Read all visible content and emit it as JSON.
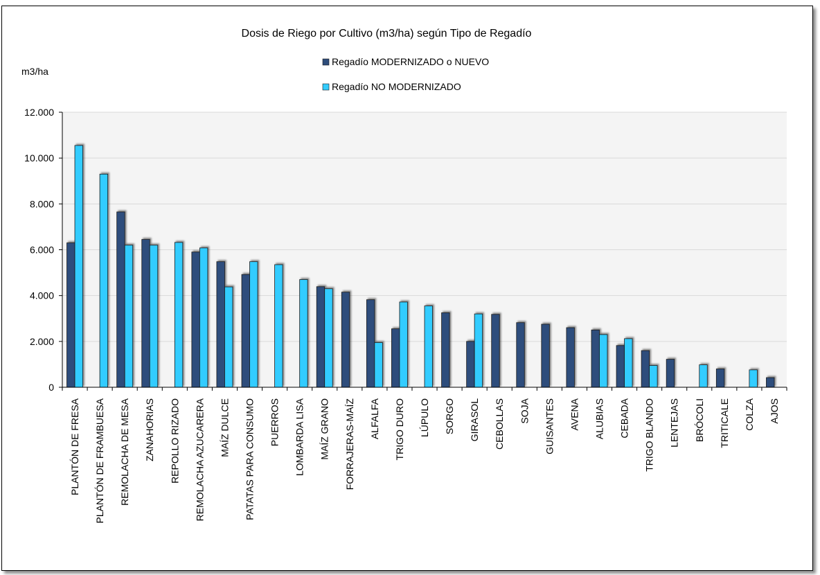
{
  "chart_data": {
    "type": "bar",
    "title": "Dosis de Riego por Cultivo (m3/ha) según Tipo de Regadío",
    "ylabel": "m3/ha",
    "xlabel": "",
    "ylim": [
      0,
      12000
    ],
    "yticks": [
      0,
      2000,
      4000,
      6000,
      8000,
      10000,
      12000
    ],
    "ytick_labels": [
      "0",
      "2.000",
      "4.000",
      "6.000",
      "8.000",
      "10.000",
      "12.000"
    ],
    "grid": true,
    "legend_position": "top",
    "categories": [
      "PLANTÓN DE FRESA",
      "PLANTÓN DE FRAMBUESA",
      "REMOLACHA DE MESA",
      "ZANAHORIAS",
      "REPOLLO RIZADO",
      "REMOLACHA AZUCARERA",
      "MAÍZ DULCE",
      "PATATAS PARA CONSUMO",
      "PUERROS",
      "LOMBARDA LISA",
      "MAÍZ GRANO",
      "FORRAJERAS-MAÍZ",
      "ALFALFA",
      "TRIGO DURO",
      "LÚPULO",
      "SORGO",
      "GIRASOL",
      "CEBOLLAS",
      "SOJA",
      "GUISANTES",
      "AVENA",
      "ALUBIAS",
      "CEBADA",
      "TRIGO BLANDO",
      "LENTEJAS",
      "BRÓCOLI",
      "TRITICALE",
      "COLZA",
      "AJOS"
    ],
    "series": [
      {
        "name": "Regadío MODERNIZADO o NUEVO",
        "color": "#2e4d7b",
        "values": [
          6300,
          0,
          7650,
          6450,
          0,
          5900,
          5480,
          4920,
          0,
          0,
          4390,
          4150,
          3820,
          2550,
          0,
          3250,
          2000,
          3180,
          2820,
          2750,
          2600,
          2500,
          1820,
          1600,
          1220,
          0,
          800,
          0,
          420
        ]
      },
      {
        "name": "Regadío NO MODERNIZADO",
        "color": "#33ccff",
        "values": [
          10550,
          9300,
          6200,
          6200,
          6320,
          6080,
          4380,
          5480,
          5350,
          4700,
          4300,
          0,
          1950,
          3720,
          3550,
          0,
          3200,
          0,
          0,
          0,
          0,
          2300,
          2120,
          950,
          0,
          980,
          0,
          760,
          0
        ]
      }
    ]
  }
}
